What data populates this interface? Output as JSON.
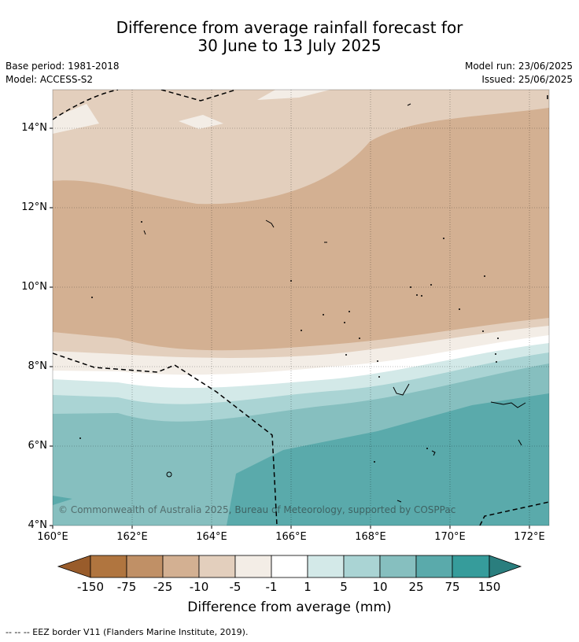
{
  "title": {
    "line1": "Difference from average rainfall forecast for",
    "line2": "30 June to 13 July 2025"
  },
  "meta": {
    "base_period": "Base period: 1981-2018",
    "model": "Model: ACCESS-S2",
    "model_run": "Model run: 23/06/2025",
    "issued": "Issued: 25/06/2025"
  },
  "map": {
    "lat_labels": [
      "14°N",
      "12°N",
      "10°N",
      "8°N",
      "6°N",
      "4°N"
    ],
    "lon_labels": [
      "160°E",
      "162°E",
      "164°E",
      "166°E",
      "168°E",
      "170°E",
      "172°E"
    ],
    "credit": "© Commonwealth of Australia 2025, Bureau of Meteorology, supported by COSPPac"
  },
  "colorbar": {
    "title": "Difference from average (mm)",
    "tick_labels": [
      "-150",
      "-75",
      "-25",
      "-10",
      "-5",
      "-1",
      "1",
      "5",
      "10",
      "25",
      "75",
      "150"
    ],
    "colors": [
      "#995c2b",
      "#b0753f",
      "#c09066",
      "#d3b092",
      "#e3cfbd",
      "#f3ede6",
      "#ffffff",
      "#d3e9e8",
      "#aad4d4",
      "#86bfbf",
      "#5aaaab",
      "#369c9b",
      "#2a7e7e"
    ]
  },
  "footer": {
    "legend_text": "-- -- -- EEZ border V11 (Flanders Marine Institute, 2019)."
  }
}
